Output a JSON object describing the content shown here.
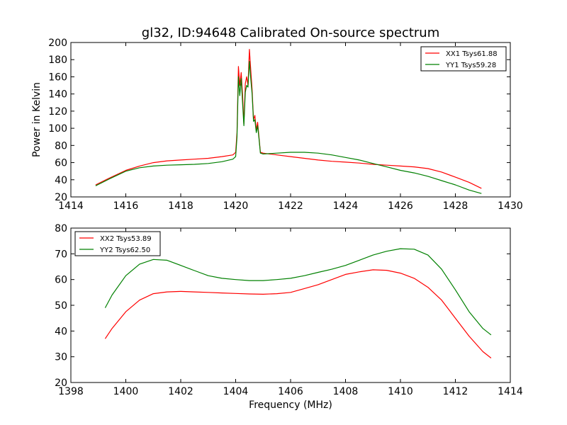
{
  "figure": {
    "title": "gl32, ID:94648 Calibrated On-source spectrum"
  },
  "chart_data": [
    {
      "type": "line",
      "title": "gl32, ID:94648 Calibrated On-source spectrum",
      "xlabel": "",
      "ylabel": "Power in Kelvin",
      "xlim": [
        1414,
        1430
      ],
      "ylim": [
        20,
        200
      ],
      "xticks": [
        "1414",
        "1416",
        "1418",
        "1420",
        "1422",
        "1424",
        "1426",
        "1428",
        "1430"
      ],
      "yticks": [
        "20",
        "40",
        "60",
        "80",
        "100",
        "120",
        "140",
        "160",
        "180",
        "200"
      ],
      "grid": false,
      "legend_position": "top-right",
      "series": [
        {
          "name": "XX1 Tsys61.88",
          "color": "#ff0000",
          "x": [
            1414.9,
            1415.4,
            1416.0,
            1416.5,
            1417.0,
            1417.5,
            1418.0,
            1418.5,
            1419.0,
            1419.5,
            1419.9,
            1420.0,
            1420.05,
            1420.1,
            1420.15,
            1420.2,
            1420.25,
            1420.3,
            1420.35,
            1420.4,
            1420.45,
            1420.5,
            1420.55,
            1420.6,
            1420.65,
            1420.7,
            1420.75,
            1420.8,
            1420.85,
            1420.9,
            1421.0,
            1421.5,
            1422.0,
            1422.5,
            1423.0,
            1423.5,
            1424.0,
            1424.5,
            1425.0,
            1425.5,
            1426.0,
            1426.5,
            1427.0,
            1427.5,
            1428.0,
            1428.5,
            1428.95
          ],
          "y": [
            34,
            42,
            51,
            56,
            60,
            62,
            63,
            64,
            65,
            67,
            69,
            72,
            95,
            172,
            150,
            165,
            140,
            105,
            152,
            160,
            150,
            192,
            168,
            145,
            110,
            115,
            98,
            107,
            90,
            72,
            71,
            69,
            67,
            65,
            63,
            61.5,
            60.5,
            59.5,
            58,
            57,
            56,
            55,
            53,
            49,
            43,
            37,
            30
          ]
        },
        {
          "name": "YY1 Tsys59.28",
          "color": "#008000",
          "x": [
            1414.9,
            1415.4,
            1416.0,
            1416.5,
            1417.0,
            1417.5,
            1418.0,
            1418.5,
            1419.0,
            1419.5,
            1419.9,
            1420.0,
            1420.05,
            1420.1,
            1420.15,
            1420.2,
            1420.25,
            1420.3,
            1420.35,
            1420.4,
            1420.45,
            1420.5,
            1420.55,
            1420.6,
            1420.65,
            1420.7,
            1420.75,
            1420.8,
            1420.85,
            1420.9,
            1421.0,
            1421.5,
            1422.0,
            1422.5,
            1423.0,
            1423.5,
            1424.0,
            1424.5,
            1425.0,
            1425.5,
            1426.0,
            1426.5,
            1427.0,
            1427.5,
            1428.0,
            1428.5,
            1428.95
          ],
          "y": [
            33,
            41,
            50,
            54,
            56,
            57,
            57.5,
            58,
            59,
            61,
            64,
            67,
            90,
            160,
            138,
            158,
            130,
            103,
            142,
            150,
            148,
            178,
            158,
            140,
            108,
            110,
            95,
            103,
            88,
            71,
            70,
            71,
            72,
            72,
            71,
            69,
            66,
            63,
            59,
            55,
            51,
            48,
            44,
            39,
            34,
            28,
            24
          ]
        }
      ]
    },
    {
      "type": "line",
      "title": "",
      "xlabel": "Frequency (MHz)",
      "ylabel": "",
      "xlim": [
        1398,
        1414
      ],
      "ylim": [
        20,
        80
      ],
      "xticks": [
        "1398",
        "1400",
        "1402",
        "1404",
        "1406",
        "1408",
        "1410",
        "1412",
        "1414"
      ],
      "yticks": [
        "20",
        "30",
        "40",
        "50",
        "60",
        "70",
        "80"
      ],
      "grid": false,
      "legend_position": "top-left",
      "series": [
        {
          "name": "XX2 Tsys53.89",
          "color": "#ff0000",
          "x": [
            1399.25,
            1399.5,
            1400.0,
            1400.5,
            1401.0,
            1401.5,
            1402.0,
            1402.5,
            1403.0,
            1403.5,
            1404.0,
            1404.5,
            1405.0,
            1405.5,
            1406.0,
            1406.5,
            1407.0,
            1407.5,
            1408.0,
            1408.5,
            1409.0,
            1409.5,
            1410.0,
            1410.5,
            1411.0,
            1411.5,
            1412.0,
            1412.5,
            1413.0,
            1413.3
          ],
          "y": [
            37,
            41,
            47.5,
            52,
            54.5,
            55.2,
            55.4,
            55.2,
            55,
            54.8,
            54.6,
            54.4,
            54.3,
            54.5,
            55,
            56.5,
            58,
            60,
            62,
            63,
            63.8,
            63.6,
            62.5,
            60.5,
            57,
            52,
            45,
            38,
            32,
            29.5
          ]
        },
        {
          "name": "YY2 Tsys62.50",
          "color": "#008000",
          "x": [
            1399.25,
            1399.5,
            1400.0,
            1400.5,
            1401.0,
            1401.5,
            1402.0,
            1402.5,
            1403.0,
            1403.5,
            1404.0,
            1404.5,
            1405.0,
            1405.5,
            1406.0,
            1406.5,
            1407.0,
            1407.5,
            1408.0,
            1408.5,
            1409.0,
            1409.5,
            1410.0,
            1410.5,
            1411.0,
            1411.5,
            1412.0,
            1412.5,
            1413.0,
            1413.3
          ],
          "y": [
            49,
            54,
            61.5,
            66,
            67.8,
            67.5,
            65.5,
            63.5,
            61.5,
            60.5,
            60,
            59.6,
            59.6,
            60,
            60.5,
            61.5,
            62.8,
            64,
            65.5,
            67.5,
            69.5,
            71,
            72,
            71.8,
            69.5,
            64,
            56,
            47.5,
            41,
            38.5
          ]
        }
      ]
    }
  ]
}
